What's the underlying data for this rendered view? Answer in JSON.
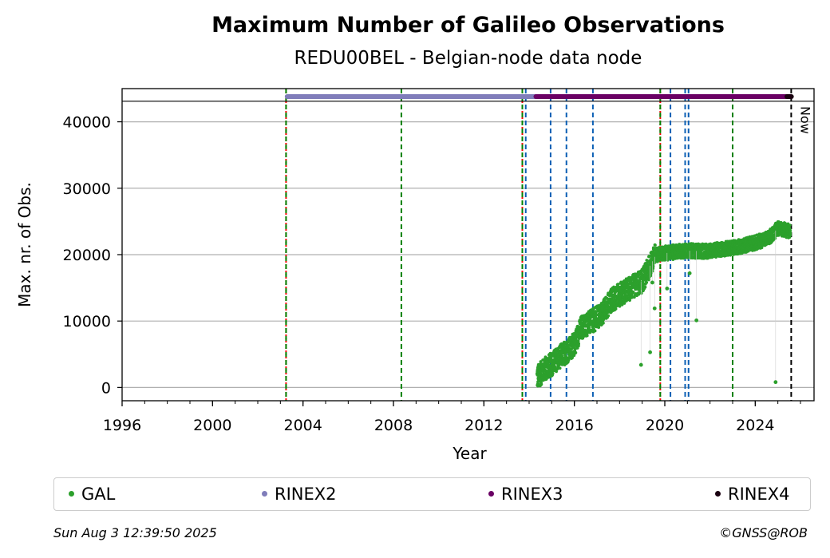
{
  "title": "Maximum Number of Galileo Observations",
  "subtitle": "REDU00BEL - Belgian-node data node",
  "footer": {
    "timestamp": "Sun Aug  3 12:39:50 2025",
    "copyright": "©GNSS@ROB"
  },
  "chart_data": {
    "type": "scatter",
    "xlabel": "Year",
    "ylabel": "Max. nr. of Obs.",
    "xlim": [
      1996,
      2026.6
    ],
    "ylim": [
      -2000,
      45000
    ],
    "x_ticks": [
      1996,
      2000,
      2004,
      2008,
      2012,
      2016,
      2020,
      2024
    ],
    "y_ticks": [
      0,
      10000,
      20000,
      30000,
      40000
    ],
    "grid": "horizontal",
    "legend_position": "bottom",
    "series": [
      {
        "name": "GAL",
        "color": "#2ca02c",
        "trend": [
          {
            "x": 2014.35,
            "y": 1500
          },
          {
            "x": 2014.7,
            "y": 2800
          },
          {
            "x": 2015.0,
            "y": 3500
          },
          {
            "x": 2015.3,
            "y": 4500
          },
          {
            "x": 2015.7,
            "y": 5500
          },
          {
            "x": 2016.0,
            "y": 6500
          },
          {
            "x": 2016.3,
            "y": 9000
          },
          {
            "x": 2016.8,
            "y": 10000
          },
          {
            "x": 2017.2,
            "y": 11000
          },
          {
            "x": 2017.6,
            "y": 13000
          },
          {
            "x": 2018.0,
            "y": 14000
          },
          {
            "x": 2018.5,
            "y": 15000
          },
          {
            "x": 2019.0,
            "y": 16000
          },
          {
            "x": 2019.3,
            "y": 18000
          },
          {
            "x": 2019.6,
            "y": 20000
          },
          {
            "x": 2020.2,
            "y": 20300
          },
          {
            "x": 2021.0,
            "y": 20600
          },
          {
            "x": 2021.8,
            "y": 20500
          },
          {
            "x": 2022.5,
            "y": 20800
          },
          {
            "x": 2023.3,
            "y": 21200
          },
          {
            "x": 2024.0,
            "y": 21800
          },
          {
            "x": 2024.6,
            "y": 22500
          },
          {
            "x": 2025.0,
            "y": 24000
          },
          {
            "x": 2025.55,
            "y": 23500
          }
        ],
        "outliers": [
          {
            "x": 2018.95,
            "y": 3400
          },
          {
            "x": 2019.35,
            "y": 5300
          },
          {
            "x": 2019.55,
            "y": 11900
          },
          {
            "x": 2019.45,
            "y": 15800
          },
          {
            "x": 2020.1,
            "y": 14900
          },
          {
            "x": 2021.4,
            "y": 10100
          },
          {
            "x": 2021.1,
            "y": 17200
          },
          {
            "x": 2024.9,
            "y": 800
          }
        ]
      },
      {
        "name": "RINEX2",
        "color": "#807dba",
        "x_range": [
          2003.3,
          2014.3
        ],
        "y": 43800
      },
      {
        "name": "RINEX3",
        "color": "#6a0064",
        "x_range": [
          2014.3,
          2025.4
        ],
        "y": 43800
      },
      {
        "name": "RINEX4",
        "color": "#1a0010",
        "x_range": [
          2025.4,
          2025.6
        ],
        "y": 43800
      }
    ],
    "vertical_lines": [
      {
        "x": 2003.25,
        "color": "red",
        "style": "dotted"
      },
      {
        "x": 2003.25,
        "color": "green",
        "style": "dashed"
      },
      {
        "x": 2008.35,
        "color": "green",
        "style": "dashed"
      },
      {
        "x": 2013.7,
        "color": "red",
        "style": "dotted"
      },
      {
        "x": 2013.7,
        "color": "green",
        "style": "dashed"
      },
      {
        "x": 2013.85,
        "color": "#0a5fb4",
        "style": "dashed"
      },
      {
        "x": 2014.95,
        "color": "#0a5fb4",
        "style": "dashed"
      },
      {
        "x": 2015.65,
        "color": "#0a5fb4",
        "style": "dashed"
      },
      {
        "x": 2016.82,
        "color": "#0a5fb4",
        "style": "dashed"
      },
      {
        "x": 2019.8,
        "color": "red",
        "style": "dotted"
      },
      {
        "x": 2019.8,
        "color": "green",
        "style": "dashed"
      },
      {
        "x": 2020.25,
        "color": "#0a5fb4",
        "style": "dashed"
      },
      {
        "x": 2020.9,
        "color": "#0a5fb4",
        "style": "dashed"
      },
      {
        "x": 2021.05,
        "color": "#0a5fb4",
        "style": "dashed"
      },
      {
        "x": 2023.0,
        "color": "green",
        "style": "dashed"
      },
      {
        "x": 2025.59,
        "color": "black",
        "style": "dashed",
        "label": "Now"
      }
    ]
  }
}
